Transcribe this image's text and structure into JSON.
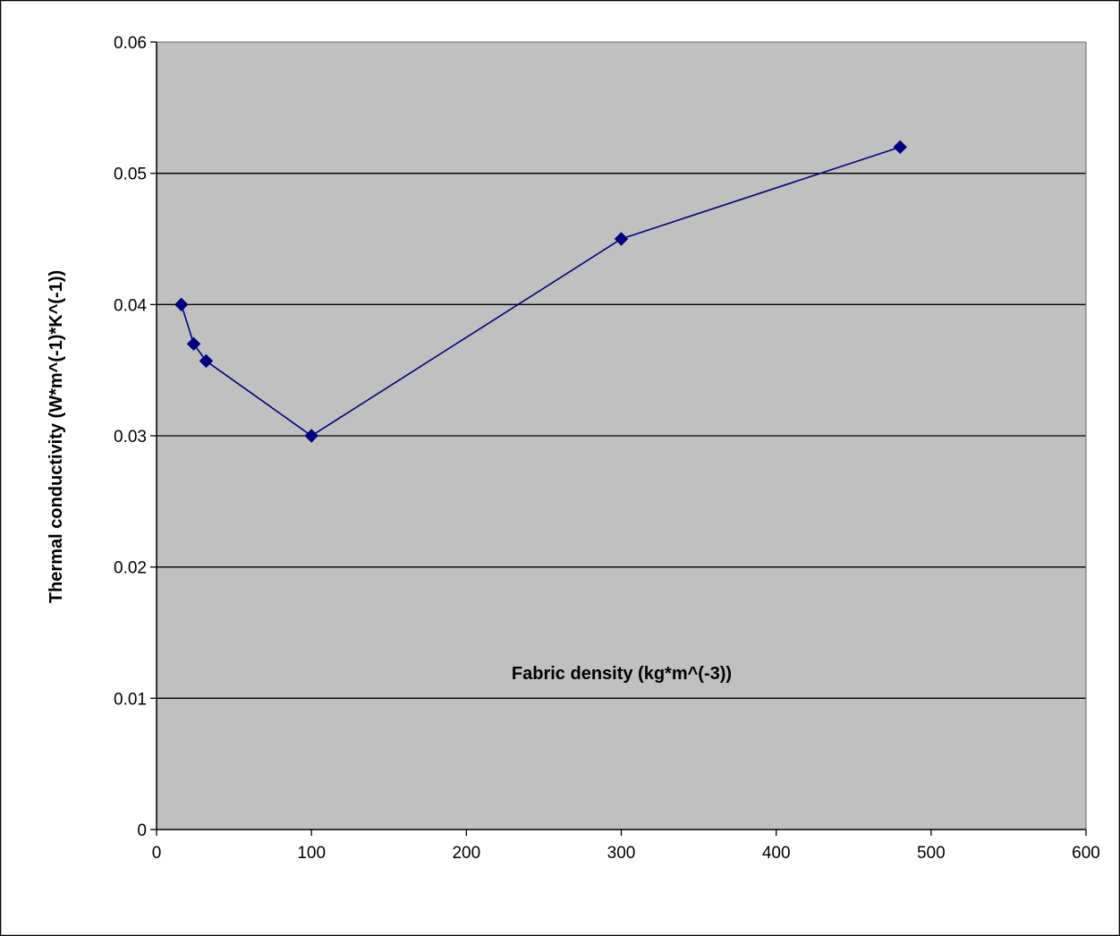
{
  "chart_data": {
    "type": "scatter",
    "title": "",
    "xlabel": "Fabric density (kg*m^(-3))",
    "ylabel": "Thermal conductivity (W*m^(-1)*K^(-1))",
    "xlim": [
      0,
      600
    ],
    "ylim": [
      0,
      0.06
    ],
    "x_ticks": [
      0,
      100,
      200,
      300,
      400,
      500,
      600
    ],
    "y_ticks": [
      0,
      0.01,
      0.02,
      0.03,
      0.04,
      0.05,
      0.06
    ],
    "x_tick_labels": [
      "0",
      "100",
      "200",
      "300",
      "400",
      "500",
      "600"
    ],
    "y_tick_labels": [
      "0",
      "0.01",
      "0.02",
      "0.03",
      "0.04",
      "0.05",
      "0.06"
    ],
    "grid": "horizontal",
    "legend": "none",
    "series": [
      {
        "x": [
          16,
          24,
          32,
          100,
          300,
          480
        ],
        "y": [
          0.04,
          0.037,
          0.0357,
          0.03,
          0.045,
          0.052
        ],
        "marker": "diamond",
        "line": "straight"
      }
    ],
    "colors": {
      "plot_background": "#c0c0c0",
      "series": "#000080",
      "gridline": "#000000",
      "frame": "#000000",
      "page": "#ffffff"
    }
  }
}
